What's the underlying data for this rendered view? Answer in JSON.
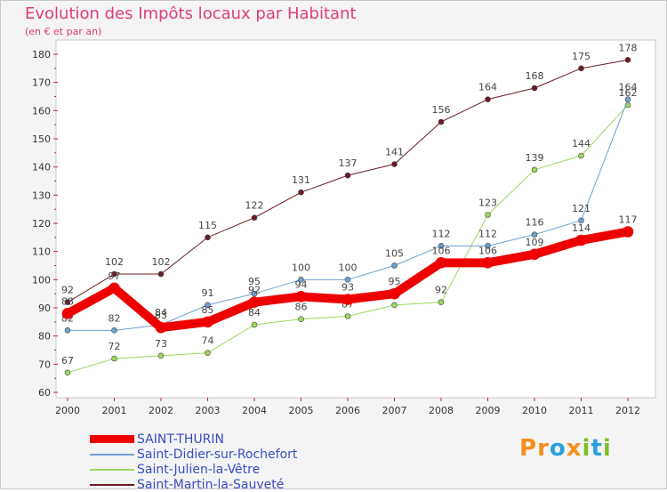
{
  "header": {
    "title": "Evolution des Impôts locaux par Habitant",
    "subtitle": "(en € et par an)"
  },
  "logo": {
    "text": "Proxiti",
    "letters": [
      "P",
      "r",
      "o",
      "x",
      "i",
      "t",
      "i"
    ],
    "colors": [
      "#f28f1e",
      "#f28f1e",
      "#2aa0dc",
      "#f28f1e",
      "#7fbf2a",
      "#2aa0dc",
      "#7fbf2a"
    ]
  },
  "chart_data": {
    "type": "line",
    "title": "Evolution des Impôts locaux par Habitant",
    "subtitle": "(en € et par an)",
    "xlabel": "",
    "ylabel": "",
    "x": [
      "2000",
      "2001",
      "2002",
      "2003",
      "2004",
      "2005",
      "2006",
      "2007",
      "2008",
      "2009",
      "2010",
      "2011",
      "2012"
    ],
    "ylim": [
      60,
      180
    ],
    "yticks": [
      60,
      70,
      80,
      90,
      100,
      110,
      120,
      130,
      140,
      150,
      160,
      170,
      180
    ],
    "grid": false,
    "legend_position": "bottom-left",
    "series": [
      {
        "name": "Saint-Martin-la-Sauveté",
        "color": "#6b1a24",
        "width": 1,
        "values": [
          92,
          102,
          102,
          115,
          122,
          131,
          137,
          141,
          156,
          164,
          168,
          175,
          178
        ]
      },
      {
        "name": "Saint-Julien-la-Vêtre",
        "color": "#9ed65e",
        "width": 1,
        "values": [
          67,
          72,
          73,
          74,
          84,
          86,
          87,
          91,
          92,
          123,
          139,
          144,
          162
        ]
      },
      {
        "name": "Saint-Didier-sur-Rochefort",
        "color": "#6e9fd0",
        "width": 1,
        "values": [
          82,
          82,
          84,
          91,
          95,
          100,
          100,
          105,
          112,
          112,
          116,
          121,
          164
        ]
      },
      {
        "name": "SAINT-THURIN",
        "color": "#ee0000",
        "width": 10,
        "values": [
          88,
          97,
          83,
          85,
          92,
          94,
          93,
          95,
          106,
          106,
          109,
          114,
          117
        ]
      }
    ],
    "legend_order": [
      "SAINT-THURIN",
      "Saint-Didier-sur-Rochefort",
      "Saint-Julien-la-Vêtre",
      "Saint-Martin-la-Sauveté"
    ]
  }
}
